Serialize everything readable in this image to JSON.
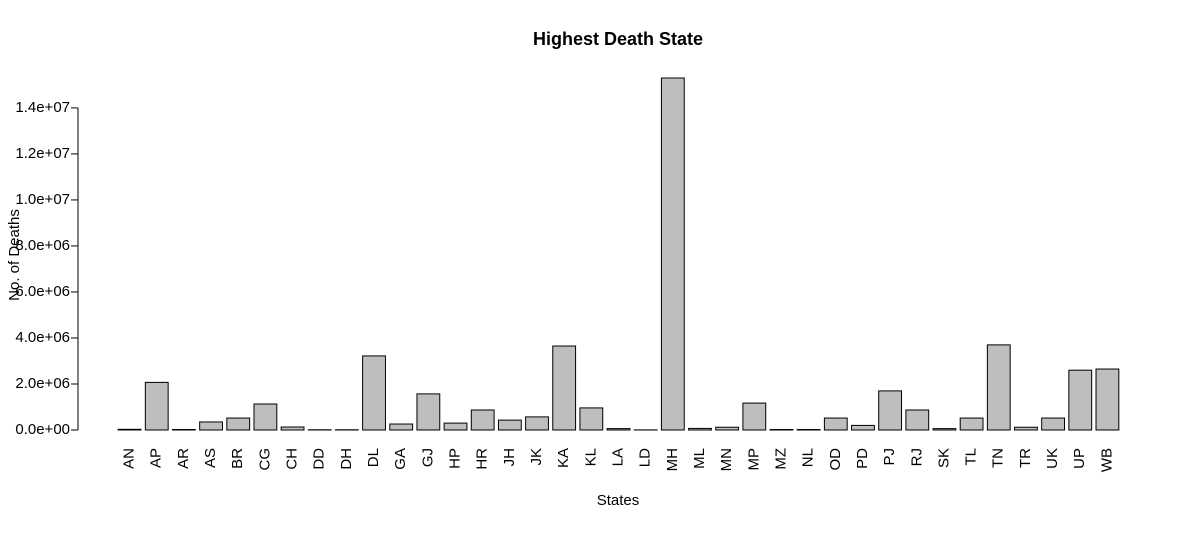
{
  "chart_data": {
    "type": "bar",
    "title": "Highest Death State",
    "x_label": "States",
    "y_label": "No. of Deaths",
    "categories": [
      "AN",
      "AP",
      "AR",
      "AS",
      "BR",
      "CG",
      "CH",
      "DD",
      "DH",
      "DL",
      "GA",
      "GJ",
      "HP",
      "HR",
      "JH",
      "JK",
      "KA",
      "KL",
      "LA",
      "LD",
      "MH",
      "ML",
      "MN",
      "MP",
      "MZ",
      "NL",
      "OD",
      "PD",
      "PJ",
      "RJ",
      "SK",
      "TL",
      "TN",
      "TR",
      "UK",
      "UP",
      "WB"
    ],
    "values": [
      30000,
      2070000,
      20000,
      350000,
      520000,
      1130000,
      130000,
      10000,
      10000,
      3220000,
      260000,
      1570000,
      300000,
      870000,
      430000,
      570000,
      3650000,
      960000,
      60000,
      5000,
      15300000,
      70000,
      120000,
      1170000,
      20000,
      20000,
      520000,
      200000,
      1700000,
      870000,
      60000,
      520000,
      3700000,
      120000,
      520000,
      2600000,
      2650000
    ],
    "color": "#bebebe",
    "ylim": [
      0,
      15300000
    ],
    "yticks": [
      {
        "value": 0,
        "label": "0.0e+00"
      },
      {
        "value": 2000000,
        "label": "2.0e+06"
      },
      {
        "value": 4000000,
        "label": "4.0e+06"
      },
      {
        "value": 6000000,
        "label": "6.0e+06"
      },
      {
        "value": 8000000,
        "label": "8.0e+06"
      },
      {
        "value": 10000000,
        "label": "1.0e+07"
      },
      {
        "value": 12000000,
        "label": "1.2e+07"
      },
      {
        "value": 14000000,
        "label": "1.4e+07"
      }
    ]
  }
}
